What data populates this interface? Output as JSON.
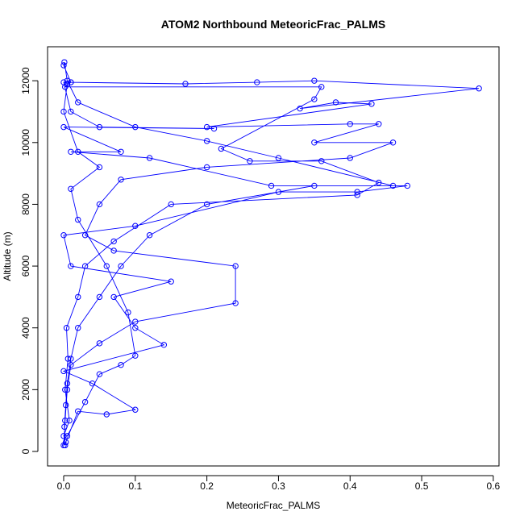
{
  "chart_data": {
    "type": "line",
    "title": "ATOM2 Northbound MeteoricFrac_PALMS",
    "xlabel": "MeteoricFrac_PALMS",
    "ylabel": "Altitude (m)",
    "color": "#0000ff",
    "marker": "circle",
    "xlim": [
      -0.0225,
      0.608
    ],
    "ylim": [
      -470,
      13100
    ],
    "xticks": [
      {
        "value": 0,
        "label": "0.0"
      },
      0.1,
      0.2,
      0.3,
      0.4,
      0.5,
      0.6
    ],
    "yticks": [
      0,
      2000,
      4000,
      6000,
      8000,
      10000,
      12000
    ],
    "x": [
      0.002,
      0.001,
      0.003,
      0.005,
      0.01,
      0.02,
      0.05,
      0.08,
      0.12,
      0.2,
      0.35,
      0.46,
      0.3,
      0.2,
      0.1,
      0.02,
      0.005,
      0.001,
      0.0,
      0.01,
      0.17,
      0.27,
      0.35,
      0.58,
      0.33,
      0.38,
      0.43,
      0.2,
      0.4,
      0.44,
      0.35,
      0.46,
      0.4,
      0.2,
      0.08,
      0.05,
      0.03,
      0.07,
      0.24,
      0.24,
      0.1,
      0.05,
      0.01,
      0.005,
      0.002,
      0.0,
      0.003,
      0.02,
      0.06,
      0.1,
      0.04,
      0.0,
      0.14,
      0.1,
      0.07,
      0.15,
      0.01,
      0.0,
      0.1,
      0.3,
      0.41,
      0.48,
      0.29,
      0.12,
      0.01,
      0.08,
      0.0,
      0.21,
      0.05,
      0.01,
      0.0,
      0.01,
      0.002,
      0.36,
      0.35,
      0.22,
      0.26,
      0.36,
      0.44,
      0.41,
      0.15,
      0.07,
      0.03,
      0.02,
      0.004,
      0.006,
      0.002,
      0.008,
      0.0,
      0.005,
      0.03,
      0.05,
      0.08,
      0.1,
      0.09,
      0.06,
      0.02,
      0.01,
      0.05,
      0.02,
      0.0,
      0.005
    ],
    "values": [
      200,
      800,
      1500,
      2200,
      3000,
      4000,
      5000,
      6000,
      7000,
      8000,
      8600,
      8600,
      9500,
      10050,
      10500,
      11300,
      12000,
      12600,
      12500,
      11950,
      11900,
      11950,
      12000,
      11750,
      11100,
      11300,
      11250,
      10500,
      10600,
      10600,
      10000,
      10000,
      9500,
      9200,
      8800,
      8000,
      7000,
      6500,
      6000,
      4800,
      4200,
      3500,
      2800,
      2000,
      1000,
      200,
      300,
      1300,
      1200,
      1350,
      2200,
      2600,
      3450,
      4000,
      5000,
      5500,
      6000,
      7000,
      7300,
      8400,
      8400,
      8600,
      8600,
      9500,
      9700,
      9700,
      10500,
      10450,
      10500,
      11000,
      11950,
      11950,
      11800,
      11800,
      11400,
      9800,
      9400,
      9400,
      8700,
      8300,
      8000,
      6800,
      6000,
      5000,
      4000,
      3000,
      2000,
      1000,
      500,
      500,
      1600,
      2500,
      2800,
      3100,
      4500,
      6000,
      7500,
      8500,
      9200,
      9700,
      11000,
      11900
    ]
  }
}
